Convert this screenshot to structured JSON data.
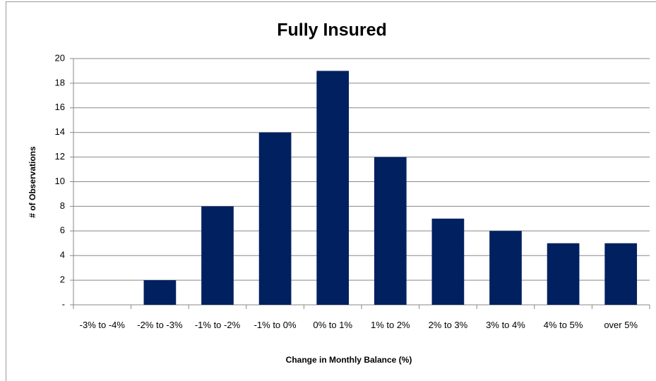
{
  "chart_data": {
    "type": "bar",
    "title": "Fully Insured",
    "x_label": "Change in Monthly Balance (%)",
    "y_label": "# of Observations",
    "categories": [
      "-3% to -4%",
      "-2% to -3%",
      "-1% to -2%",
      "-1% to 0%",
      "0% to 1%",
      "1% to 2%",
      "2% to 3%",
      "3% to 4%",
      "4% to 5%",
      "over 5%"
    ],
    "values": [
      0,
      2,
      8,
      14,
      19,
      12,
      7,
      6,
      5,
      5
    ],
    "color": "#002060",
    "ylim": [
      0,
      20
    ],
    "yticks": [
      {
        "value": 0,
        "label": "-"
      },
      2,
      4,
      6,
      8,
      10,
      12,
      14,
      16,
      18,
      20
    ],
    "grid": true
  }
}
